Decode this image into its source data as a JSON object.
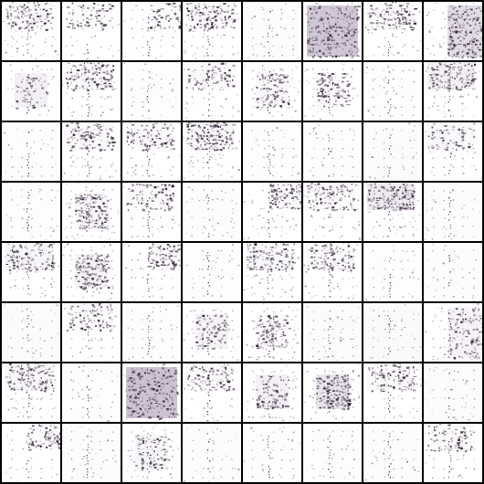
{
  "grid": {
    "rows": 8,
    "cols": 8,
    "colors": {
      "background": "#000000",
      "tile": "#ffffff",
      "ink_dark": "#2a1a2e",
      "ink_mid": "#6e5a72",
      "ink_light": "#c9bfd0"
    },
    "tiles": [
      {
        "density": 0.55,
        "wash": 0.05,
        "blob": "top"
      },
      {
        "density": 0.35,
        "wash": 0.03,
        "blob": "top"
      },
      {
        "density": 0.3,
        "wash": 0.03,
        "blob": "top-right"
      },
      {
        "density": 0.55,
        "wash": 0.05,
        "blob": "top"
      },
      {
        "density": 0.3,
        "wash": 0.03,
        "blob": "none"
      },
      {
        "density": 0.95,
        "wash": 0.55,
        "blob": "full"
      },
      {
        "density": 0.55,
        "wash": 0.05,
        "blob": "top"
      },
      {
        "density": 0.85,
        "wash": 0.35,
        "blob": "right"
      },
      {
        "density": 0.25,
        "wash": 0.15,
        "blob": "center"
      },
      {
        "density": 0.6,
        "wash": 0.05,
        "blob": "top"
      },
      {
        "density": 0.25,
        "wash": 0.02,
        "blob": "none"
      },
      {
        "density": 0.35,
        "wash": 0.05,
        "blob": "top"
      },
      {
        "density": 0.55,
        "wash": 0.05,
        "blob": "center"
      },
      {
        "density": 0.55,
        "wash": 0.05,
        "blob": "center"
      },
      {
        "density": 0.3,
        "wash": 0.02,
        "blob": "none"
      },
      {
        "density": 0.6,
        "wash": 0.15,
        "blob": "top"
      },
      {
        "density": 0.25,
        "wash": 0.02,
        "blob": "none"
      },
      {
        "density": 0.55,
        "wash": 0.05,
        "blob": "top"
      },
      {
        "density": 0.45,
        "wash": 0.05,
        "blob": "top"
      },
      {
        "density": 0.7,
        "wash": 0.08,
        "blob": "top"
      },
      {
        "density": 0.25,
        "wash": 0.02,
        "blob": "none"
      },
      {
        "density": 0.3,
        "wash": 0.02,
        "blob": "none"
      },
      {
        "density": 0.3,
        "wash": 0.04,
        "blob": "none"
      },
      {
        "density": 0.3,
        "wash": 0.08,
        "blob": "top"
      },
      {
        "density": 0.25,
        "wash": 0.02,
        "blob": "none"
      },
      {
        "density": 0.7,
        "wash": 0.08,
        "blob": "center"
      },
      {
        "density": 0.45,
        "wash": 0.05,
        "blob": "top"
      },
      {
        "density": 0.3,
        "wash": 0.03,
        "blob": "none"
      },
      {
        "density": 0.5,
        "wash": 0.05,
        "blob": "top-right"
      },
      {
        "density": 0.55,
        "wash": 0.05,
        "blob": "top"
      },
      {
        "density": 0.7,
        "wash": 0.2,
        "blob": "top"
      },
      {
        "density": 0.35,
        "wash": 0.03,
        "blob": "none"
      },
      {
        "density": 0.55,
        "wash": 0.1,
        "blob": "top"
      },
      {
        "density": 0.75,
        "wash": 0.12,
        "blob": "center"
      },
      {
        "density": 0.4,
        "wash": 0.05,
        "blob": "top-right"
      },
      {
        "density": 0.25,
        "wash": 0.02,
        "blob": "none"
      },
      {
        "density": 0.55,
        "wash": 0.08,
        "blob": "top"
      },
      {
        "density": 0.55,
        "wash": 0.05,
        "blob": "top"
      },
      {
        "density": 0.25,
        "wash": 0.02,
        "blob": "none"
      },
      {
        "density": 0.3,
        "wash": 0.03,
        "blob": "none"
      },
      {
        "density": 0.25,
        "wash": 0.04,
        "blob": "none"
      },
      {
        "density": 0.4,
        "wash": 0.05,
        "blob": "top"
      },
      {
        "density": 0.25,
        "wash": 0.02,
        "blob": "none"
      },
      {
        "density": 0.4,
        "wash": 0.12,
        "blob": "center"
      },
      {
        "density": 0.55,
        "wash": 0.05,
        "blob": "center"
      },
      {
        "density": 0.35,
        "wash": 0.04,
        "blob": "none"
      },
      {
        "density": 0.35,
        "wash": 0.05,
        "blob": "none"
      },
      {
        "density": 0.55,
        "wash": 0.12,
        "blob": "right"
      },
      {
        "density": 0.6,
        "wash": 0.08,
        "blob": "top"
      },
      {
        "density": 0.25,
        "wash": 0.02,
        "blob": "none"
      },
      {
        "density": 0.95,
        "wash": 0.6,
        "blob": "full"
      },
      {
        "density": 0.45,
        "wash": 0.05,
        "blob": "top"
      },
      {
        "density": 0.4,
        "wash": 0.15,
        "blob": "center"
      },
      {
        "density": 0.8,
        "wash": 0.25,
        "blob": "center"
      },
      {
        "density": 0.5,
        "wash": 0.05,
        "blob": "top"
      },
      {
        "density": 0.35,
        "wash": 0.04,
        "blob": "none"
      },
      {
        "density": 0.35,
        "wash": 0.04,
        "blob": "top-right"
      },
      {
        "density": 0.35,
        "wash": 0.03,
        "blob": "none"
      },
      {
        "density": 0.4,
        "wash": 0.1,
        "blob": "center"
      },
      {
        "density": 0.3,
        "wash": 0.03,
        "blob": "none"
      },
      {
        "density": 0.3,
        "wash": 0.02,
        "blob": "none"
      },
      {
        "density": 0.25,
        "wash": 0.02,
        "blob": "none"
      },
      {
        "density": 0.3,
        "wash": 0.03,
        "blob": "none"
      },
      {
        "density": 0.35,
        "wash": 0.05,
        "blob": "top"
      }
    ]
  }
}
